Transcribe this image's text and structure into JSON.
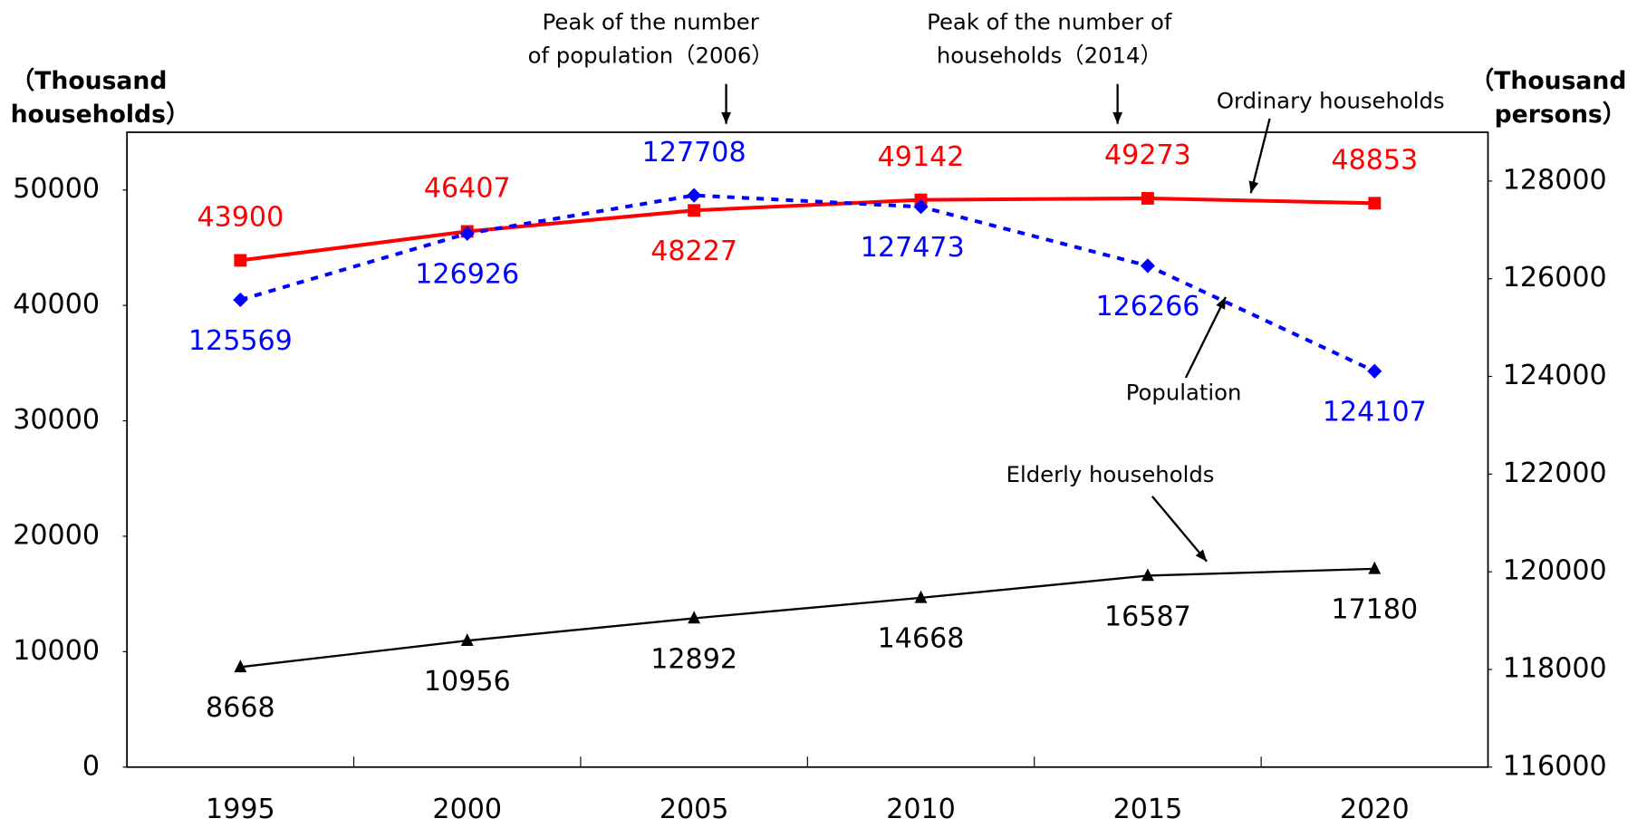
{
  "chart_data": {
    "type": "line",
    "categories": [
      "1995",
      "2000",
      "2005",
      "2010",
      "2015",
      "2020"
    ],
    "y_label": [
      "（Thousand",
      "households）"
    ],
    "y2_label": [
      "（Thousand",
      "persons）"
    ],
    "ylim": [
      0,
      55000
    ],
    "yticks": [
      0,
      10000,
      20000,
      30000,
      40000,
      50000
    ],
    "y2lim": [
      116000,
      129000
    ],
    "y2ticks": [
      116000,
      118000,
      120000,
      122000,
      124000,
      126000,
      128000
    ],
    "grid": false,
    "series": [
      {
        "name": "Ordinary households",
        "color": "#ff0000",
        "marker": "square",
        "values": [
          43900,
          46407,
          48227,
          49142,
          49273,
          48853
        ]
      },
      {
        "name": "Population",
        "color": "#0000ff",
        "marker": "diamond",
        "dashed": true,
        "axis": "y2",
        "values": [
          125569,
          126926,
          127708,
          127473,
          126266,
          124107
        ]
      },
      {
        "name": "Elderly households",
        "color": "#000000",
        "marker": "triangle",
        "values": [
          8668,
          10956,
          12892,
          14668,
          16587,
          17180
        ]
      }
    ],
    "annotations": [
      [
        "Peak of the number",
        "of population（2006）"
      ],
      [
        "Peak of the number of",
        "households（2014）"
      ]
    ]
  }
}
